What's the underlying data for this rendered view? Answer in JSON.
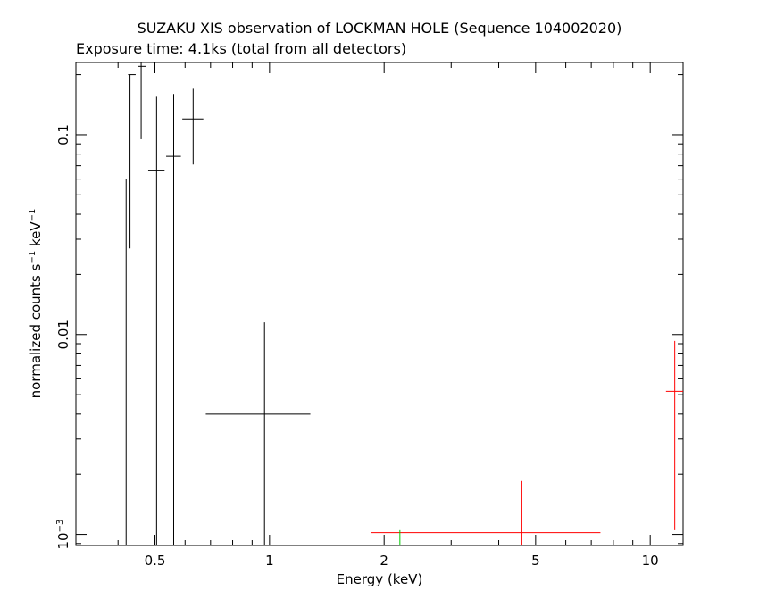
{
  "chart_data": {
    "type": "scatter",
    "title": "SUZAKU XIS observation of LOCKMAN HOLE (Sequence 104002020)",
    "subtitle": "Exposure time: 4.1ks (total from all detectors)",
    "xlabel": "Energy (keV)",
    "ylabel": {
      "pre": "normalized counts s",
      "exp1": "−1",
      "mid": " keV",
      "exp2": "−1"
    },
    "x_scale": "log",
    "y_scale": "log",
    "xlim": [
      0.31,
      12.2
    ],
    "ylim": [
      0.00088,
      0.23
    ],
    "x_ticks": [
      {
        "value": 0.5,
        "label": "0.5"
      },
      {
        "value": 1,
        "label": "1"
      },
      {
        "value": 2,
        "label": "2"
      },
      {
        "value": 5,
        "label": "5"
      },
      {
        "value": 10,
        "label": "10"
      }
    ],
    "y_ticks": [
      {
        "value": 0.1,
        "label": "0.1"
      },
      {
        "value": 0.01,
        "label": "0.01"
      },
      {
        "value": 0.001,
        "label": "10",
        "exp": "−3"
      }
    ],
    "grid": false,
    "series": [
      {
        "color": "#000000",
        "points": [
          {
            "x": 0.42,
            "xlo": 0.42,
            "xhi": 0.42,
            "y": 0.06,
            "ylo": 0.00088,
            "yhi": 0.06
          },
          {
            "x": 0.43,
            "xlo": 0.425,
            "xhi": 0.445,
            "y": 0.2,
            "ylo": 0.027,
            "yhi": 0.2
          },
          {
            "x": 0.46,
            "xlo": 0.45,
            "xhi": 0.475,
            "y": 0.22,
            "ylo": 0.095,
            "yhi": 0.23
          },
          {
            "x": 0.505,
            "xlo": 0.48,
            "xhi": 0.53,
            "y": 0.066,
            "ylo": 0.00088,
            "yhi": 0.155
          },
          {
            "x": 0.56,
            "xlo": 0.535,
            "xhi": 0.585,
            "y": 0.078,
            "ylo": 0.00088,
            "yhi": 0.16
          },
          {
            "x": 0.63,
            "xlo": 0.59,
            "xhi": 0.67,
            "y": 0.12,
            "ylo": 0.071,
            "yhi": 0.17
          },
          {
            "x": 0.97,
            "xlo": 0.68,
            "xhi": 1.28,
            "y": 0.004,
            "ylo": 0.00088,
            "yhi": 0.0115
          }
        ]
      },
      {
        "color": "#ff0000",
        "points": [
          {
            "x": 4.6,
            "xlo": 1.85,
            "xhi": 7.4,
            "y": 0.00102,
            "ylo": 0.00088,
            "yhi": 0.00185
          },
          {
            "x": 11.6,
            "xlo": 11.0,
            "xhi": 12.2,
            "y": 0.0052,
            "ylo": 0.00105,
            "yhi": 0.0093
          }
        ]
      },
      {
        "color": "#00cc00",
        "points": [
          {
            "x": 2.2,
            "xlo": 2.2,
            "xhi": 2.2,
            "y": 0.00098,
            "ylo": 0.00088,
            "yhi": 0.00105
          }
        ]
      }
    ]
  }
}
